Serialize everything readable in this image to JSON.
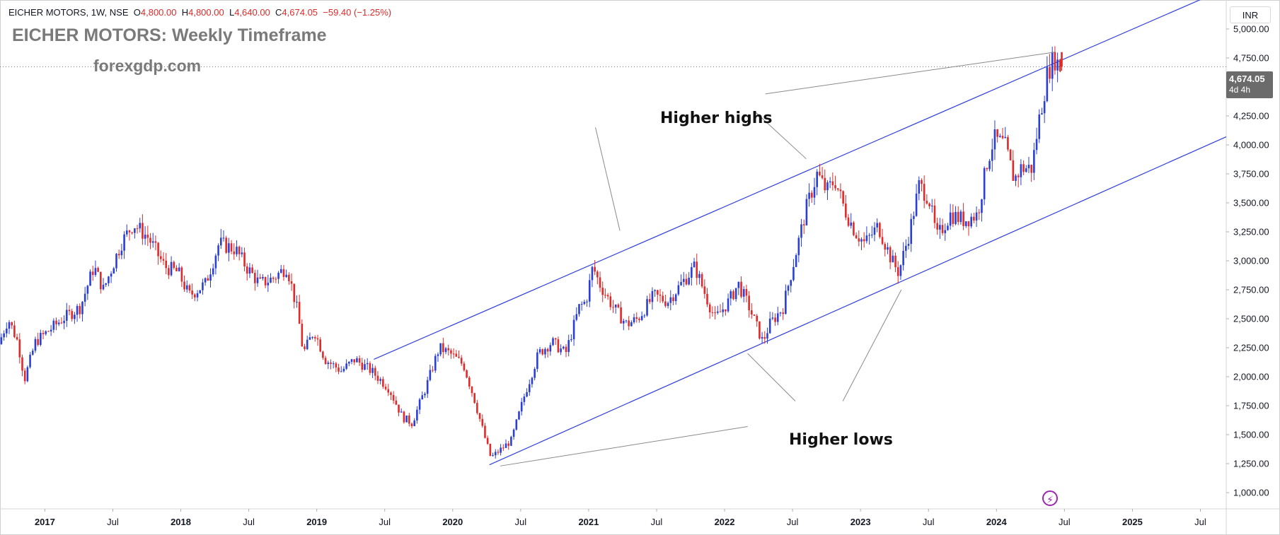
{
  "header": {
    "symbol_line": "EICHER MOTORS, 1W, NSE",
    "open_label": "O",
    "open": "4,800.00",
    "high_label": "H",
    "high": "4,800.00",
    "low_label": "L",
    "low": "4,640.00",
    "close_label": "C",
    "close": "4,674.05",
    "change": "−59.40 (−1.25%)"
  },
  "title": "EICHER MOTORS: Weekly Timeframe",
  "watermark": "forexgdp.com",
  "currency": "INR",
  "last_price": {
    "price": "4,674.05",
    "countdown": "4d 4h"
  },
  "annotations": {
    "higher_highs": "Higher highs",
    "higher_lows": "Higher lows"
  },
  "colors": {
    "up": "#2a3fd6",
    "down": "#e02a2a",
    "channel": "#2f3fe0",
    "pointer": "#8a8a8a",
    "bolt": "#9c27b0"
  },
  "chart_data": {
    "type": "candlestick",
    "title": "EICHER MOTORS: Weekly Timeframe",
    "y_axis": {
      "ticks": [
        "1,000.00",
        "1,250.00",
        "1,500.00",
        "1,750.00",
        "2,000.00",
        "2,250.00",
        "2,500.00",
        "2,750.00",
        "3,000.00",
        "3,250.00",
        "3,500.00",
        "3,750.00",
        "4,000.00",
        "4,250.00",
        "4,500.00",
        "4,750.00",
        "5,000.00"
      ],
      "range": [
        860,
        5250
      ]
    },
    "x_axis": {
      "ticks": [
        "2017",
        "Jul",
        "2018",
        "Jul",
        "2019",
        "Jul",
        "2020",
        "Jul",
        "2021",
        "Jul",
        "2022",
        "Jul",
        "2023",
        "Jul",
        "2024",
        "Jul",
        "2025",
        "Jul"
      ],
      "tick_t": [
        2017.0,
        2017.5,
        2018.0,
        2018.5,
        2019.0,
        2019.5,
        2020.0,
        2020.5,
        2021.0,
        2021.5,
        2022.0,
        2022.5,
        2023.0,
        2023.5,
        2024.0,
        2024.5,
        2025.0,
        2025.5
      ],
      "range": [
        2016.67,
        2025.69
      ]
    },
    "price_path": [
      [
        2016.67,
        2250
      ],
      [
        2016.75,
        2500
      ],
      [
        2016.82,
        2300
      ],
      [
        2016.87,
        1980
      ],
      [
        2016.95,
        2300
      ],
      [
        2017.05,
        2400
      ],
      [
        2017.15,
        2500
      ],
      [
        2017.28,
        2600
      ],
      [
        2017.38,
        2950
      ],
      [
        2017.45,
        2750
      ],
      [
        2017.58,
        3150
      ],
      [
        2017.67,
        3320
      ],
      [
        2017.78,
        3200
      ],
      [
        2017.9,
        2950
      ],
      [
        2018.0,
        2900
      ],
      [
        2018.08,
        2700
      ],
      [
        2018.2,
        2800
      ],
      [
        2018.3,
        3150
      ],
      [
        2018.42,
        3100
      ],
      [
        2018.5,
        2950
      ],
      [
        2018.6,
        2800
      ],
      [
        2018.7,
        2850
      ],
      [
        2018.8,
        2950
      ],
      [
        2018.88,
        2550
      ],
      [
        2018.92,
        2200
      ],
      [
        2019.0,
        2400
      ],
      [
        2019.08,
        2150
      ],
      [
        2019.2,
        2050
      ],
      [
        2019.3,
        2150
      ],
      [
        2019.42,
        2050
      ],
      [
        2019.55,
        1900
      ],
      [
        2019.65,
        1650
      ],
      [
        2019.72,
        1600
      ],
      [
        2019.82,
        1900
      ],
      [
        2019.92,
        2250
      ],
      [
        2020.0,
        2200
      ],
      [
        2020.1,
        2100
      ],
      [
        2020.18,
        1800
      ],
      [
        2020.25,
        1500
      ],
      [
        2020.3,
        1300
      ],
      [
        2020.35,
        1350
      ],
      [
        2020.45,
        1450
      ],
      [
        2020.55,
        1850
      ],
      [
        2020.65,
        2200
      ],
      [
        2020.75,
        2300
      ],
      [
        2020.85,
        2200
      ],
      [
        2020.95,
        2600
      ],
      [
        2021.0,
        2650
      ],
      [
        2021.05,
        2950
      ],
      [
        2021.1,
        2800
      ],
      [
        2021.2,
        2600
      ],
      [
        2021.3,
        2450
      ],
      [
        2021.38,
        2500
      ],
      [
        2021.5,
        2700
      ],
      [
        2021.6,
        2650
      ],
      [
        2021.7,
        2800
      ],
      [
        2021.8,
        2950
      ],
      [
        2021.88,
        2700
      ],
      [
        2021.95,
        2500
      ],
      [
        2022.05,
        2650
      ],
      [
        2022.12,
        2800
      ],
      [
        2022.2,
        2600
      ],
      [
        2022.3,
        2300
      ],
      [
        2022.35,
        2450
      ],
      [
        2022.45,
        2600
      ],
      [
        2022.55,
        3100
      ],
      [
        2022.62,
        3450
      ],
      [
        2022.7,
        3750
      ],
      [
        2022.77,
        3600
      ],
      [
        2022.83,
        3700
      ],
      [
        2022.9,
        3450
      ],
      [
        2022.98,
        3250
      ],
      [
        2023.05,
        3150
      ],
      [
        2023.15,
        3300
      ],
      [
        2023.25,
        3000
      ],
      [
        2023.3,
        2900
      ],
      [
        2023.38,
        3250
      ],
      [
        2023.45,
        3650
      ],
      [
        2023.52,
        3550
      ],
      [
        2023.58,
        3200
      ],
      [
        2023.68,
        3400
      ],
      [
        2023.78,
        3350
      ],
      [
        2023.88,
        3400
      ],
      [
        2023.95,
        3850
      ],
      [
        2024.0,
        4050
      ],
      [
        2024.08,
        4000
      ],
      [
        2024.15,
        3700
      ],
      [
        2024.2,
        3800
      ],
      [
        2024.28,
        3800
      ],
      [
        2024.33,
        4200
      ],
      [
        2024.4,
        4650
      ],
      [
        2024.45,
        4750
      ],
      [
        2024.48,
        4674.05
      ]
    ],
    "last_candle": {
      "open": 4800.0,
      "high": 4800.0,
      "low": 4640.0,
      "close": 4674.05,
      "change": -59.4,
      "change_pct": -1.25
    },
    "channel": {
      "upper": [
        [
          2019.42,
          2150
        ],
        [
          2025.69,
          5350
        ]
      ],
      "lower": [
        [
          2020.27,
          1240
        ],
        [
          2025.69,
          4070
        ]
      ]
    },
    "pointers": [
      {
        "label": "Higher highs",
        "from": [
          2021.23,
          3260
        ],
        "to": [
          2021.05,
          4150
        ]
      },
      {
        "label": "Higher highs",
        "from": [
          2022.23,
          4280
        ],
        "to": [
          2022.6,
          3880
        ]
      },
      {
        "label": "Higher highs",
        "from": [
          2022.3,
          4440
        ],
        "to": [
          2024.43,
          4800
        ]
      },
      {
        "label": "Higher lows",
        "from": [
          2020.35,
          1230
        ],
        "to": [
          2022.17,
          1570
        ]
      },
      {
        "label": "Higher lows",
        "from": [
          2022.17,
          2200
        ],
        "to": [
          2022.52,
          1790
        ]
      },
      {
        "label": "Higher lows",
        "from": [
          2023.3,
          2750
        ],
        "to": [
          2022.87,
          1790
        ]
      }
    ],
    "grid": false,
    "legend": "none"
  }
}
